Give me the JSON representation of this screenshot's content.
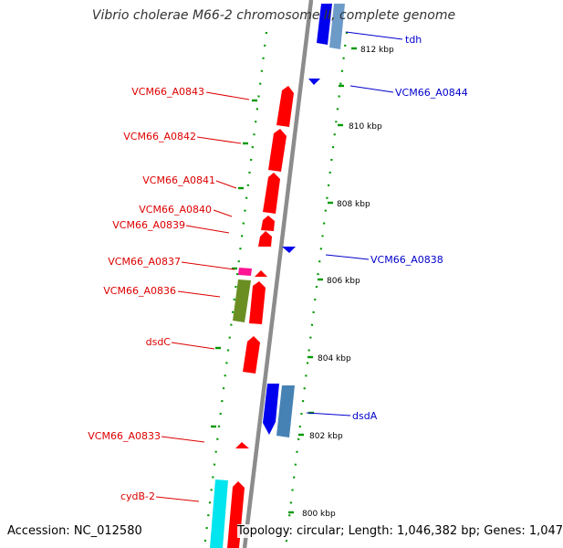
{
  "title": "Vibrio cholerae M66-2 chromosome II, complete genome",
  "accession_label": "Accession: NC_012580",
  "topology_info": "Topology: circular; Length: 1,046,382 bp; Genes: 1,047",
  "scale_labels": [
    "812 kbp",
    "810 kbp",
    "808 kbp",
    "806 kbp",
    "804 kbp",
    "802 kbp",
    "800 kbp"
  ],
  "genes_reverse_strand": [
    "VCM66_A0843",
    "VCM66_A0842",
    "VCM66_A0841",
    "VCM66_A0840",
    "VCM66_A0839",
    "VCM66_A0837",
    "VCM66_A0836",
    "dsdC",
    "VCM66_A0833",
    "cydB-2"
  ],
  "genes_forward_strand": [
    "tdh",
    "VCM66_A0844",
    "VCM66_A0838",
    "dsdA"
  ],
  "colors": {
    "reverse_label": "#dd0000",
    "forward_label": "#0000cc",
    "backbone": "#8c8c8c",
    "dotted_track": "#009900",
    "cds_red": "#ff0000",
    "cds_blue": "#0000ee",
    "cds_steelblue": "#4682b4",
    "cds_olive": "#6b8e23",
    "cds_magenta": "#ff1493",
    "cds_cyan": "#00e5ee"
  }
}
